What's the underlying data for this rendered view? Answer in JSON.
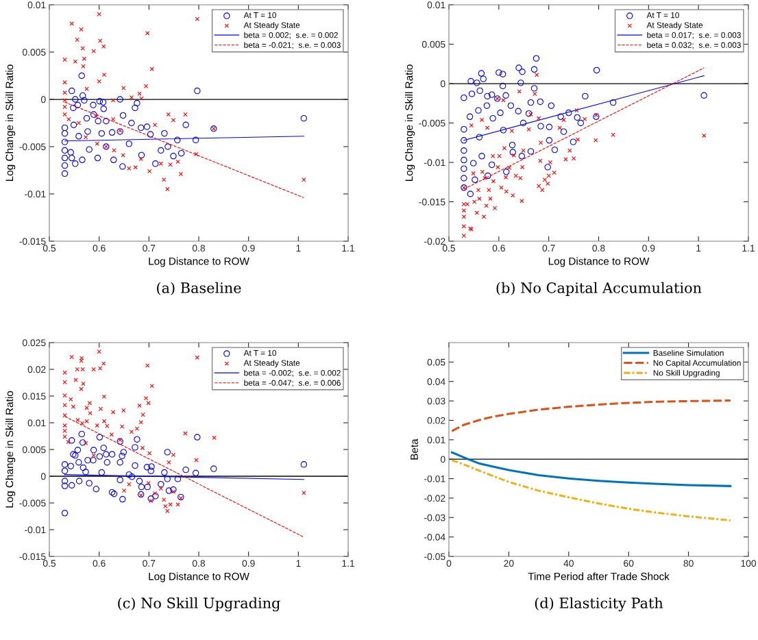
{
  "chart_data": [
    {
      "type": "scatter",
      "title": "(a) Baseline",
      "xlabel": "Log Distance to ROW",
      "ylabel": "Log Change in Skill Ratio",
      "xlim": [
        0.5,
        1.1
      ],
      "xticks": [
        0.5,
        0.6,
        0.7,
        0.8,
        0.9,
        1,
        1.1
      ],
      "ylim": [
        -0.015,
        0.01
      ],
      "yticks": [
        -0.015,
        -0.01,
        -0.005,
        0,
        0.005,
        0.01
      ],
      "legend": "top right",
      "ref_lines": [
        {
          "axis": "y",
          "value": 0,
          "color": "#000000"
        }
      ],
      "series": [
        {
          "name": "At T = 10",
          "type": "scatter",
          "marker": "circle",
          "color": "#0000ff",
          "x": [
            0.531,
            0.531,
            0.531,
            0.531,
            0.531,
            0.531,
            0.531,
            0.543,
            0.545,
            0.545,
            0.548,
            0.549,
            0.552,
            0.552,
            0.557,
            0.559,
            0.565,
            0.567,
            0.566,
            0.57,
            0.575,
            0.577,
            0.58,
            0.588,
            0.589,
            0.597,
            0.598,
            0.601,
            0.605,
            0.608,
            0.609,
            0.614,
            0.614,
            0.626,
            0.629,
            0.642,
            0.642,
            0.648,
            0.647,
            0.66,
            0.665,
            0.672,
            0.676,
            0.684,
            0.685,
            0.696,
            0.703,
            0.713,
            0.724,
            0.731,
            0.738,
            0.749,
            0.757,
            0.765,
            0.774,
            0.794,
            0.797,
            0.83,
            1.011
          ],
          "values": [
            -0.00785,
            -0.007,
            -0.0062,
            -0.0054,
            -0.0045,
            -0.0036,
            -0.003,
            -0.0056,
            -0.0062,
            0.0009,
            -0.0009,
            -0.0027,
            0.0,
            -0.0068,
            -0.0006,
            -0.0039,
            0.0025,
            0.0004,
            -0.0064,
            -0.0001,
            -0.002,
            -0.0034,
            -0.0053,
            -0.0006,
            -0.0016,
            -0.0062,
            -0.0023,
            -0.0002,
            -0.0036,
            -0.0003,
            -0.001,
            -0.0023,
            -0.005,
            -0.0035,
            -0.0064,
            0.0,
            -0.0034,
            -0.0017,
            -0.0071,
            -0.0047,
            -0.0025,
            -0.0009,
            -0.0004,
            -0.003,
            -0.0059,
            -0.0029,
            -0.0037,
            -0.0068,
            -0.0054,
            -0.0036,
            -0.005,
            -0.006,
            -0.0043,
            -0.0057,
            -0.0027,
            -0.0043,
            0.0009,
            -0.0031,
            -0.002
          ]
        },
        {
          "name": "At Steady State",
          "type": "scatter",
          "marker": "cross",
          "color": "#ff0000",
          "x": [
            0.531,
            0.531,
            0.531,
            0.531,
            0.531,
            0.531,
            0.545,
            0.539,
            0.552,
            0.556,
            0.564,
            0.567,
            0.57,
            0.568,
            0.575,
            0.559,
            0.573,
            0.589,
            0.6,
            0.602,
            0.609,
            0.61,
            0.6,
            0.594,
            0.596,
            0.614,
            0.628,
            0.628,
            0.63,
            0.642,
            0.649,
            0.648,
            0.66,
            0.665,
            0.673,
            0.681,
            0.685,
            0.684,
            0.694,
            0.697,
            0.706,
            0.701,
            0.712,
            0.724,
            0.73,
            0.737,
            0.739,
            0.743,
            0.749,
            0.758,
            0.764,
            0.773,
            0.795,
            0.797,
            0.83,
            1.011
          ],
          "values": [
            0.0042,
            0.0018,
            0.0007,
            -0.0001,
            -0.0008,
            -0.0016,
            0.008,
            -0.0021,
            0.004,
            0.0063,
            0.0074,
            0.0054,
            0.0043,
            0.0035,
            0.0011,
            -0.0025,
            -0.004,
            0.0051,
            0.009,
            0.0062,
            0.0056,
            0.0026,
            0.0019,
            -0.0018,
            -0.0047,
            -0.005,
            -0.0001,
            -0.0021,
            -0.0054,
            -0.0033,
            0.0012,
            -0.0059,
            -0.0073,
            0.0002,
            -0.0072,
            0.0006,
            0.0001,
            -0.0063,
            0.0014,
            0.007,
            0.0032,
            -0.0076,
            -0.0027,
            -0.0068,
            -0.0085,
            -0.0095,
            -0.0016,
            -0.0069,
            -0.0022,
            -0.0066,
            -0.0079,
            -0.0016,
            -0.0058,
            0.0085,
            -0.0031,
            -0.0085
          ]
        },
        {
          "name": "beta = 0.002;  s.e. = 0.002",
          "type": "line",
          "line_style": "solid",
          "color": "#0000ff",
          "x": [
            0.531,
            1.011
          ],
          "values": [
            -0.0044,
            -0.0039
          ]
        },
        {
          "name": "beta = -0.021;  s.e. = 0.003",
          "type": "line",
          "line_style": "dashed",
          "color": "#ff0000",
          "x": [
            0.531,
            1.011
          ],
          "values": [
            -0.0003,
            -0.0104
          ]
        }
      ]
    },
    {
      "type": "scatter",
      "title": "(b) No Capital Accumulation",
      "xlabel": "Log Distance to ROW",
      "ylabel": "Log Change in Skill Ratio",
      "xlim": [
        0.5,
        1.1
      ],
      "xticks": [
        0.5,
        0.6,
        0.7,
        0.8,
        0.9,
        1,
        1.1
      ],
      "ylim": [
        -0.02,
        0.01
      ],
      "yticks": [
        -0.02,
        -0.015,
        -0.01,
        -0.005,
        0,
        0.005,
        0.01
      ],
      "legend": "top right",
      "ref_lines": [
        {
          "axis": "y",
          "value": 0,
          "color": "#000000"
        }
      ],
      "series": [
        {
          "name": "At T = 10",
          "type": "scatter",
          "marker": "circle",
          "color": "#0000ff",
          "x": [
            0.53,
            0.53,
            0.53,
            0.53,
            0.53,
            0.53,
            0.53,
            0.53,
            0.543,
            0.544,
            0.546,
            0.542,
            0.549,
            0.552,
            0.556,
            0.559,
            0.561,
            0.562,
            0.565,
            0.566,
            0.569,
            0.576,
            0.577,
            0.578,
            0.586,
            0.588,
            0.586,
            0.597,
            0.6,
            0.603,
            0.608,
            0.608,
            0.609,
            0.614,
            0.615,
            0.624,
            0.627,
            0.628,
            0.639,
            0.64,
            0.644,
            0.647,
            0.646,
            0.649,
            0.66,
            0.664,
            0.664,
            0.671,
            0.675,
            0.671,
            0.683,
            0.684,
            0.698,
            0.701,
            0.705,
            0.701,
            0.712,
            0.724,
            0.73,
            0.74,
            0.749,
            0.757,
            0.764,
            0.773,
            0.795,
            0.796,
            0.829,
            1.011
          ],
          "values": [
            -0.0018,
            -0.0058,
            -0.0072,
            -0.0085,
            -0.0097,
            -0.0108,
            -0.012,
            -0.0132,
            -0.014,
            0.0003,
            -0.0013,
            -0.0042,
            -0.0101,
            -0.0122,
            0.0001,
            -0.0034,
            -0.0068,
            -0.0009,
            0.0013,
            -0.0092,
            0.0006,
            -0.0028,
            -0.0016,
            -0.0117,
            -0.0014,
            -0.0044,
            -0.0103,
            -0.0019,
            0.0014,
            -0.0037,
            0.0012,
            -0.0003,
            -0.0059,
            -0.0015,
            -0.0112,
            -0.0028,
            -0.0078,
            -0.0087,
            -0.0035,
            0.002,
            0.0001,
            0.0015,
            -0.0092,
            -0.005,
            -0.0038,
            -0.0024,
            -0.0086,
            -0.0006,
            0.0032,
            0.0018,
            -0.0023,
            -0.0054,
            -0.0106,
            -0.0055,
            -0.0028,
            -0.0072,
            -0.0084,
            -0.0042,
            -0.0061,
            -0.0037,
            -0.0074,
            -0.0043,
            -0.005,
            -0.0016,
            -0.0042,
            0.0017,
            -0.0024,
            -0.0015
          ]
        },
        {
          "name": "At Steady State",
          "type": "scatter",
          "marker": "cross",
          "color": "#ff0000",
          "x": [
            0.53,
            0.53,
            0.53,
            0.53,
            0.53,
            0.53,
            0.537,
            0.543,
            0.545,
            0.545,
            0.549,
            0.551,
            0.556,
            0.559,
            0.561,
            0.566,
            0.567,
            0.57,
            0.572,
            0.575,
            0.577,
            0.58,
            0.583,
            0.588,
            0.589,
            0.592,
            0.597,
            0.598,
            0.601,
            0.605,
            0.609,
            0.611,
            0.614,
            0.615,
            0.621,
            0.626,
            0.628,
            0.63,
            0.634,
            0.641,
            0.643,
            0.646,
            0.647,
            0.649,
            0.66,
            0.664,
            0.672,
            0.676,
            0.68,
            0.683,
            0.684,
            0.68,
            0.687,
            0.692,
            0.698,
            0.7,
            0.703,
            0.711,
            0.722,
            0.73,
            0.734,
            0.742,
            0.75,
            0.756,
            0.758,
            0.772,
            0.794,
            0.795,
            0.829,
            1.011
          ],
          "values": [
            -0.0193,
            -0.0181,
            -0.0169,
            -0.0161,
            -0.0153,
            -0.0132,
            -0.0153,
            -0.0184,
            -0.0185,
            -0.0053,
            -0.0114,
            -0.015,
            -0.0164,
            -0.0135,
            -0.0146,
            -0.0046,
            -0.0112,
            -0.0169,
            -0.012,
            -0.0155,
            -0.0056,
            -0.0135,
            -0.0146,
            -0.0092,
            -0.0124,
            -0.0158,
            -0.0019,
            -0.0106,
            -0.0092,
            -0.0132,
            -0.0021,
            -0.0082,
            -0.0119,
            -0.0137,
            -0.0107,
            -0.006,
            -0.0142,
            -0.0091,
            -0.0117,
            -0.001,
            -0.012,
            -0.0149,
            -0.0106,
            -0.0085,
            -0.0058,
            -0.0039,
            -0.0013,
            0.0011,
            -0.0044,
            -0.0098,
            -0.0075,
            -0.013,
            -0.0135,
            -0.0122,
            -0.0127,
            -0.0117,
            -0.01,
            -0.0113,
            -0.0056,
            -0.0046,
            -0.0096,
            -0.0085,
            -0.0095,
            -0.0034,
            -0.0071,
            -0.0045,
            -0.0072,
            -0.004,
            -0.0065,
            -0.0066
          ]
        },
        {
          "name": "beta = 0.017;  s.e. = 0.003",
          "type": "line",
          "line_style": "solid",
          "color": "#0000ff",
          "x": [
            0.53,
            1.011
          ],
          "values": [
            -0.0072,
            0.001
          ]
        },
        {
          "name": "beta = 0.032;  s.e. = 0.003",
          "type": "line",
          "line_style": "dashed",
          "color": "#ff0000",
          "x": [
            0.53,
            1.011
          ],
          "values": [
            -0.0134,
            0.002
          ]
        }
      ]
    },
    {
      "type": "scatter",
      "title": "(c) No Skill Upgrading",
      "xlabel": "Log Distance to ROW",
      "ylabel": "Log Change in Skill Ratio",
      "xlim": [
        0.5,
        1.1
      ],
      "xticks": [
        0.5,
        0.6,
        0.7,
        0.8,
        0.9,
        1,
        1.1
      ],
      "ylim": [
        -0.015,
        0.025
      ],
      "yticks": [
        -0.015,
        -0.01,
        -0.005,
        0,
        0.005,
        0.01,
        0.015,
        0.02,
        0.025
      ],
      "legend": "top right",
      "ref_lines": [
        {
          "axis": "y",
          "value": 0,
          "color": "#000000"
        }
      ],
      "series": [
        {
          "name": "At T = 10",
          "type": "scatter",
          "marker": "circle",
          "color": "#0000ff",
          "x": [
            0.531,
            0.531,
            0.531,
            0.531,
            0.531,
            0.543,
            0.545,
            0.545,
            0.548,
            0.552,
            0.557,
            0.559,
            0.56,
            0.565,
            0.567,
            0.568,
            0.573,
            0.577,
            0.58,
            0.589,
            0.588,
            0.594,
            0.601,
            0.601,
            0.605,
            0.609,
            0.614,
            0.616,
            0.626,
            0.626,
            0.63,
            0.642,
            0.642,
            0.642,
            0.646,
            0.649,
            0.647,
            0.66,
            0.666,
            0.672,
            0.672,
            0.676,
            0.681,
            0.684,
            0.685,
            0.696,
            0.697,
            0.705,
            0.704,
            0.704,
            0.713,
            0.724,
            0.731,
            0.737,
            0.737,
            0.74,
            0.749,
            0.758,
            0.764,
            0.774,
            0.794,
            0.797,
            0.83,
            1.011
          ],
          "values": [
            -0.0069,
            0.0022,
            0.001,
            -0.0009,
            -0.0018,
            0.0019,
            -0.0017,
            0.0067,
            0.0041,
            0.0039,
            0.0049,
            0.0026,
            -0.0009,
            0.0079,
            0.0063,
            0.0016,
            0.0008,
            0.003,
            -0.0013,
            0.0049,
            0.003,
            -0.0024,
            0.0073,
            0.0037,
            0.0007,
            0.0053,
            0.0041,
            0.0026,
            0.0041,
            -0.003,
            -0.0033,
            0.0065,
            0.0026,
            -0.0007,
            0.0038,
            0.0045,
            -0.0043,
            0.0003,
            -0.0001,
            0.002,
            0.0054,
            0.0069,
            -0.0009,
            -0.0034,
            -0.002,
            0.0017,
            -0.002,
            0.0018,
            0.001,
            -0.0042,
            -0.0037,
            -0.0015,
            0.0007,
            0.0045,
            -0.0005,
            -0.0027,
            -0.0025,
            -0.0005,
            -0.0039,
            0.0012,
            0.0006,
            0.0073,
            0.0014,
            0.0022
          ]
        },
        {
          "name": "At Steady State",
          "type": "scatter",
          "marker": "cross",
          "color": "#ff0000",
          "x": [
            0.531,
            0.531,
            0.531,
            0.531,
            0.531,
            0.531,
            0.531,
            0.531,
            0.545,
            0.538,
            0.543,
            0.553,
            0.556,
            0.557,
            0.548,
            0.564,
            0.565,
            0.567,
            0.568,
            0.564,
            0.566,
            0.575,
            0.575,
            0.581,
            0.582,
            0.573,
            0.589,
            0.6,
            0.602,
            0.603,
            0.609,
            0.61,
            0.61,
            0.596,
            0.589,
            0.616,
            0.625,
            0.628,
            0.642,
            0.646,
            0.649,
            0.65,
            0.66,
            0.665,
            0.676,
            0.681,
            0.684,
            0.688,
            0.687,
            0.684,
            0.694,
            0.697,
            0.699,
            0.706,
            0.701,
            0.699,
            0.712,
            0.704,
            0.724,
            0.73,
            0.733,
            0.737,
            0.74,
            0.743,
            0.749,
            0.749,
            0.758,
            0.764,
            0.773,
            0.795,
            0.797,
            0.831,
            1.011
          ],
          "values": [
            0.0194,
            0.0176,
            0.0151,
            0.0133,
            0.0114,
            0.0095,
            0.0085,
            0.0074,
            0.0223,
            0.0064,
            0.0144,
            0.018,
            0.02,
            0.0105,
            0.013,
            0.0216,
            0.0221,
            0.02,
            0.0173,
            0.0163,
            0.0099,
            0.0128,
            0.0103,
            0.0137,
            0.0118,
            0.0062,
            0.02,
            0.0233,
            0.0202,
            0.0126,
            0.0211,
            0.0149,
            0.0103,
            0.0095,
            0.0039,
            0.0094,
            0.0078,
            0.012,
            0.0068,
            0.0093,
            0.0123,
            -0.0027,
            -0.0015,
            0.0083,
            0.0089,
            0.0132,
            0.0101,
            0.0115,
            0.0053,
            -0.0036,
            0.0146,
            0.0207,
            0.0137,
            0.0169,
            0.0043,
            -0.0013,
            -0.0032,
            -0.0046,
            -0.0023,
            -0.0044,
            -0.0056,
            -0.0065,
            0.0026,
            -0.0053,
            0.004,
            -0.0029,
            -0.0053,
            -0.0041,
            0.008,
            0.003,
            0.0222,
            0.0072,
            -0.0031
          ]
        },
        {
          "name": "beta = -0.002;  s.e. = 0.002",
          "type": "line",
          "line_style": "solid",
          "color": "#0000ff",
          "x": [
            0.531,
            1.011
          ],
          "values": [
            0.0003,
            -0.0006
          ]
        },
        {
          "name": "beta = -0.047;  s.e. = 0.006",
          "type": "line",
          "line_style": "dashed",
          "color": "#ff0000",
          "x": [
            0.531,
            1.011
          ],
          "values": [
            0.0112,
            -0.0114
          ]
        }
      ]
    },
    {
      "type": "line",
      "title": "(d) Elasticity Path",
      "xlabel": "Time Period after Trade Shock",
      "ylabel": "Beta",
      "xlim": [
        0,
        100
      ],
      "xticks": [
        0,
        20,
        40,
        60,
        80,
        100
      ],
      "ylim": [
        -0.05,
        0.06
      ],
      "yticks": [
        -0.05,
        -0.04,
        -0.03,
        -0.02,
        -0.01,
        0,
        0.01,
        0.02,
        0.03,
        0.04,
        0.05
      ],
      "legend": "top right",
      "ref_lines": [
        {
          "axis": "y",
          "value": 0,
          "color": "#000000"
        }
      ],
      "series": [
        {
          "name": "Baseline Simulation",
          "line_style": "solid",
          "color": "#0072bd",
          "x": [
            1,
            6.4,
            10,
            15,
            20,
            30,
            40,
            50,
            60,
            70,
            80,
            94
          ],
          "values": [
            0.0035,
            0.0,
            -0.0021,
            -0.0039,
            -0.0056,
            -0.0082,
            -0.0099,
            -0.0111,
            -0.012,
            -0.0127,
            -0.0133,
            -0.0138
          ]
        },
        {
          "name": "No Capital Accumulation",
          "line_style": "dashed",
          "color": "#d95319",
          "x": [
            1,
            5,
            10,
            15,
            20,
            30,
            40,
            50,
            60,
            70,
            80,
            94
          ],
          "values": [
            0.0145,
            0.0177,
            0.0201,
            0.022,
            0.0233,
            0.0255,
            0.027,
            0.0281,
            0.029,
            0.0296,
            0.0299,
            0.0302
          ]
        },
        {
          "name": "No Skill Upgrading",
          "line_style": "dashdot",
          "color": "#edb120",
          "x": [
            1,
            5,
            10,
            15,
            20,
            30,
            40,
            50,
            60,
            70,
            80,
            94
          ],
          "values": [
            -0.0005,
            -0.0027,
            -0.0058,
            -0.0088,
            -0.0117,
            -0.0162,
            -0.0196,
            -0.0228,
            -0.0255,
            -0.0276,
            -0.0294,
            -0.0315
          ]
        }
      ]
    }
  ]
}
